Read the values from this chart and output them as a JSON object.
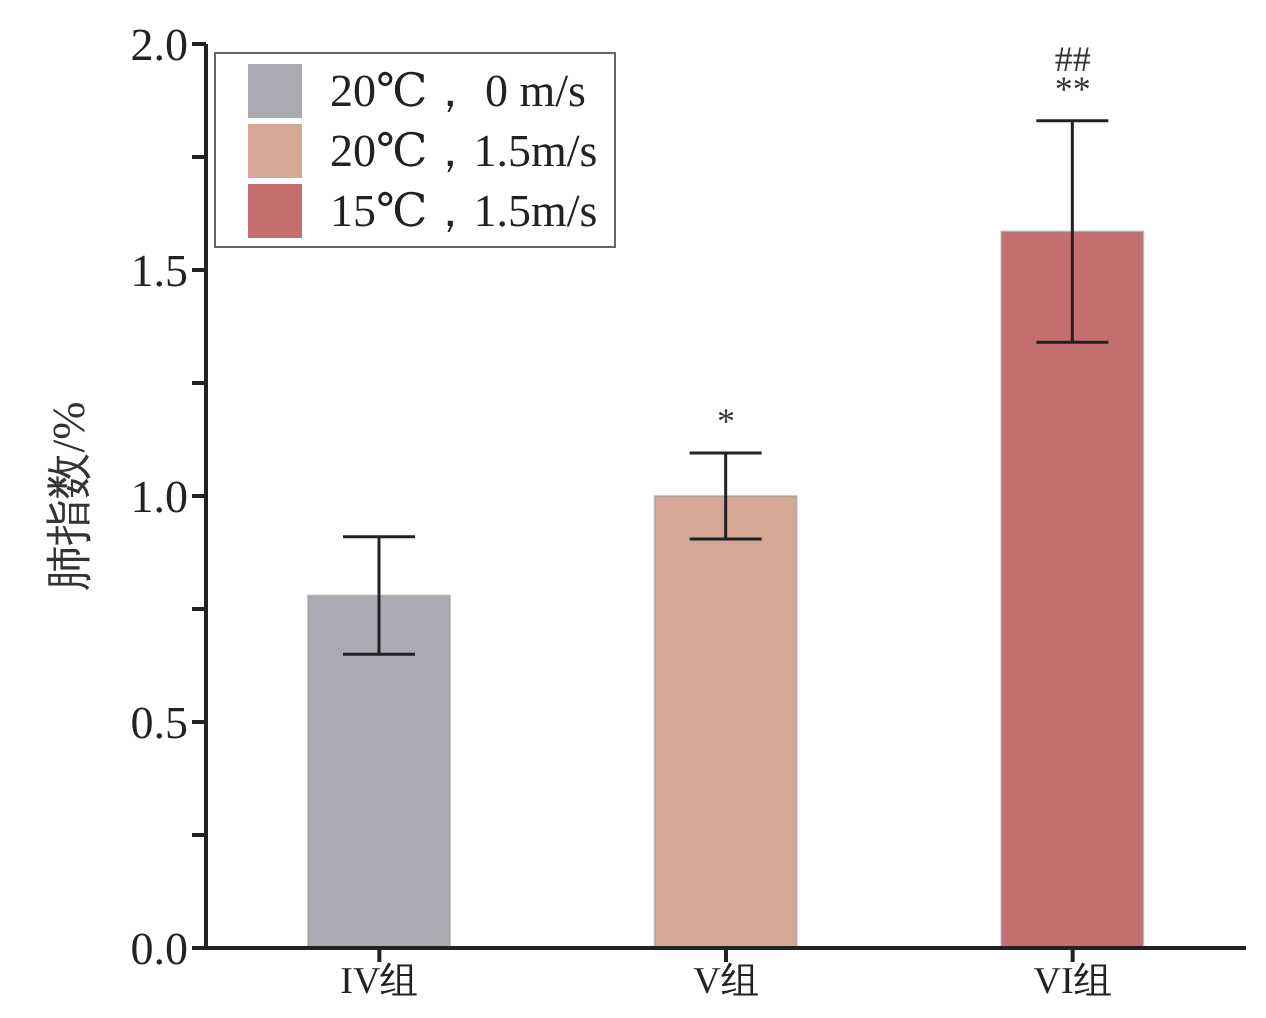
{
  "chart_data": {
    "type": "bar",
    "ylabel": "肺指数/%",
    "categories": [
      "IV组",
      "V组",
      "VI组"
    ],
    "series": [
      {
        "name": "20℃， 0 m/s",
        "color": "#a9aab2",
        "values": [
          0.78,
          null,
          null
        ],
        "errors": [
          0.13,
          null,
          null
        ]
      },
      {
        "name": "20℃，1.5m/s",
        "color": "#d4a797",
        "values": [
          null,
          1.0,
          null
        ],
        "errors": [
          null,
          0.095,
          null
        ]
      },
      {
        "name": "15℃，1.5m/s",
        "color": "#c46e70",
        "values": [
          null,
          null,
          1.585
        ],
        "errors": [
          null,
          null,
          0.245
        ]
      }
    ],
    "stacked": true,
    "ylim": [
      0,
      2.0
    ],
    "yticks": [
      {
        "value": 0,
        "label": "0.0"
      },
      {
        "value": 0.25,
        "label": null
      },
      0.5,
      {
        "value": 0.75,
        "label": null
      },
      {
        "value": 1,
        "label": "1.0"
      },
      {
        "value": 1.25,
        "label": null
      },
      1.5,
      {
        "value": 1.75,
        "label": null
      },
      {
        "value": 2,
        "label": "2.0"
      }
    ],
    "legend": "top left",
    "annotations": [
      "*",
      "**",
      "##"
    ]
  }
}
